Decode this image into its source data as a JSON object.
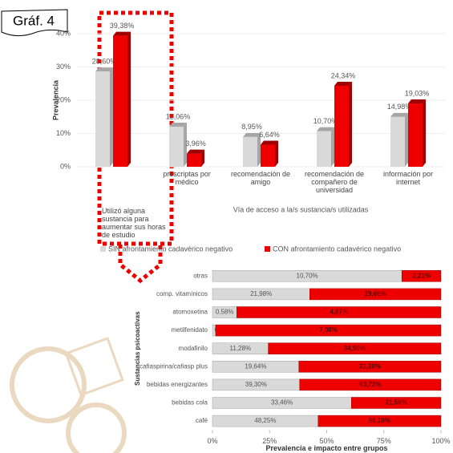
{
  "figure_label": "Gráf. 4",
  "chart_data": [
    {
      "type": "bar",
      "y_label": "Prevalencia",
      "x_label": "Vía de acceso a la/s sustancia/s utilizadas",
      "categories": [
        "Utilizó alguna sustancia para aumentar sus horas de estudio",
        "prescriptas por médico",
        "recomendación de amigo",
        "recomendación de compañero de universidad",
        "información por internet"
      ],
      "series": [
        {
          "name": "SIN afrontamiento cadavérico negativo",
          "color": "#d9d9d9",
          "values": [
            28.6,
            12.06,
            8.95,
            10.7,
            14.98
          ],
          "value_labels": [
            "28,60%",
            "12,06%",
            "8,95%",
            "10,70%",
            "14,98%"
          ]
        },
        {
          "name": "CON afrontamiento cadavérico negativo",
          "color": "#ee0000",
          "values": [
            39.38,
            3.96,
            6.64,
            24.34,
            19.03
          ],
          "value_labels": [
            "39,38%",
            "3,96%",
            "6,64%",
            "24,34%",
            "19,03%"
          ]
        }
      ],
      "ylim": [
        0,
        40
      ],
      "yticks": [
        {
          "value": 0,
          "label": "0%"
        },
        {
          "value": 10,
          "label": "10%"
        },
        {
          "value": 20,
          "label": "20%"
        },
        {
          "value": 30,
          "label": "30%"
        },
        {
          "value": 40,
          "label": "40%"
        }
      ]
    },
    {
      "type": "stacked_bar_100",
      "y_label": "Sustancias psicoactivas",
      "x_label": "Prevalencia e impacto entre grupos",
      "categories": [
        "otras",
        "comp. vitamínicos",
        "atomoxetina",
        "metilfenidato",
        "modafinilo",
        "cafiaspirina/cafiasp plus",
        "bebidas energizantes",
        "bebidas cola",
        "café"
      ],
      "series": [
        {
          "color": "#d9d9d9",
          "values": [
            10.7,
            21.98,
            0.58,
            0.1,
            11.28,
            19.64,
            39.3,
            33.46,
            48.25
          ],
          "value_labels": [
            "10,70%",
            "21,98%",
            "0,58%",
            "0,10%",
            "11,28%",
            "19,64%",
            "39,30%",
            "33,46%",
            "48,25%"
          ]
        },
        {
          "color": "#ee0000",
          "values": [
            2.21,
            29.66,
            4.87,
            7.08,
            34.9,
            32.3,
            63.72,
            21.58,
            56.1
          ],
          "value_labels": [
            "2,21%",
            "29,66%",
            "4,87%",
            "7,08%",
            "34,90%",
            "32,30%",
            "63,72%",
            "21,58%",
            "56,10%"
          ]
        }
      ],
      "xlim": [
        0,
        100
      ],
      "xticks": [
        {
          "value": 0,
          "label": "0%"
        },
        {
          "value": 25,
          "label": "25%"
        },
        {
          "value": 50,
          "label": "50%"
        },
        {
          "value": 75,
          "label": "75%"
        },
        {
          "value": 100,
          "label": "100%"
        }
      ]
    }
  ]
}
